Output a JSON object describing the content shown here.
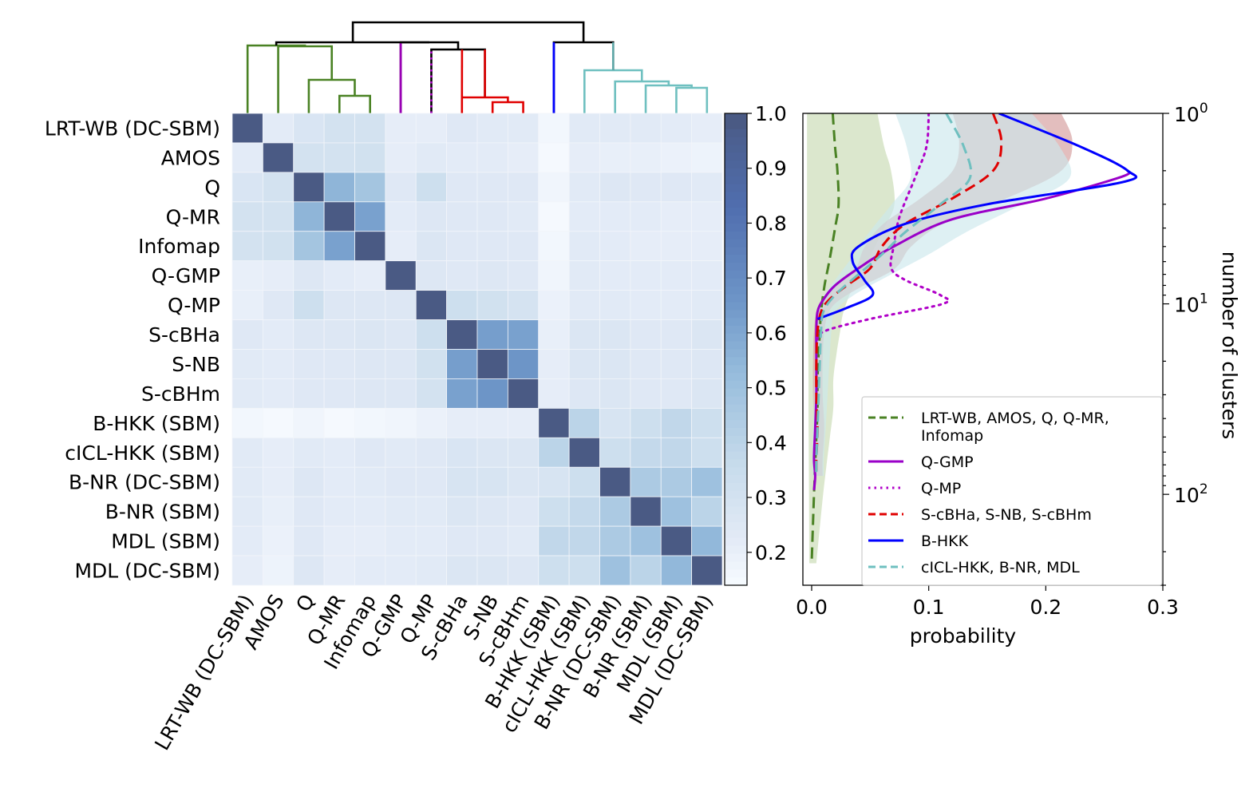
{
  "chart_data": [
    {
      "type": "heatmap",
      "title": "",
      "labels": [
        "LRT-WB (DC-SBM)",
        "AMOS",
        "Q",
        "Q-MR",
        "Infomap",
        "Q-GMP",
        "Q-MP",
        "S-cBHa",
        "S-NB",
        "S-cBHm",
        "B-HKK (SBM)",
        "cICL-HKK (SBM)",
        "B-NR (DC-SBM)",
        "B-NR (SBM)",
        "MDL (SBM)",
        "MDL (DC-SBM)"
      ],
      "values": [
        [
          1.0,
          0.22,
          0.27,
          0.3,
          0.3,
          0.21,
          0.21,
          0.24,
          0.23,
          0.23,
          0.16,
          0.23,
          0.23,
          0.23,
          0.22,
          0.21
        ],
        [
          0.22,
          1.0,
          0.3,
          0.3,
          0.31,
          0.21,
          0.23,
          0.22,
          0.22,
          0.21,
          0.15,
          0.21,
          0.2,
          0.2,
          0.19,
          0.18
        ],
        [
          0.27,
          0.3,
          1.0,
          0.55,
          0.48,
          0.24,
          0.33,
          0.24,
          0.24,
          0.24,
          0.17,
          0.23,
          0.25,
          0.24,
          0.24,
          0.23
        ],
        [
          0.3,
          0.3,
          0.55,
          1.0,
          0.62,
          0.22,
          0.25,
          0.24,
          0.24,
          0.23,
          0.15,
          0.22,
          0.22,
          0.22,
          0.21,
          0.21
        ],
        [
          0.3,
          0.31,
          0.48,
          0.62,
          1.0,
          0.21,
          0.26,
          0.24,
          0.24,
          0.24,
          0.16,
          0.23,
          0.22,
          0.21,
          0.21,
          0.21
        ],
        [
          0.2,
          0.21,
          0.25,
          0.22,
          0.21,
          1.0,
          0.25,
          0.24,
          0.25,
          0.24,
          0.17,
          0.23,
          0.22,
          0.22,
          0.22,
          0.22
        ],
        [
          0.2,
          0.24,
          0.33,
          0.25,
          0.25,
          0.25,
          1.0,
          0.33,
          0.31,
          0.29,
          0.19,
          0.23,
          0.23,
          0.22,
          0.22,
          0.23
        ],
        [
          0.24,
          0.22,
          0.25,
          0.25,
          0.26,
          0.25,
          0.33,
          1.0,
          0.63,
          0.62,
          0.2,
          0.26,
          0.26,
          0.24,
          0.24,
          0.26
        ],
        [
          0.23,
          0.22,
          0.24,
          0.24,
          0.25,
          0.25,
          0.31,
          0.63,
          1.0,
          0.66,
          0.21,
          0.26,
          0.26,
          0.24,
          0.24,
          0.25
        ],
        [
          0.23,
          0.22,
          0.24,
          0.24,
          0.25,
          0.25,
          0.3,
          0.62,
          0.66,
          1.0,
          0.21,
          0.25,
          0.26,
          0.24,
          0.24,
          0.26
        ],
        [
          0.16,
          0.15,
          0.17,
          0.15,
          0.16,
          0.17,
          0.19,
          0.21,
          0.21,
          0.21,
          1.0,
          0.4,
          0.28,
          0.33,
          0.38,
          0.33
        ],
        [
          0.23,
          0.21,
          0.23,
          0.22,
          0.24,
          0.23,
          0.24,
          0.27,
          0.26,
          0.26,
          0.4,
          1.0,
          0.33,
          0.37,
          0.38,
          0.33
        ],
        [
          0.23,
          0.21,
          0.25,
          0.22,
          0.23,
          0.24,
          0.24,
          0.28,
          0.28,
          0.26,
          0.28,
          0.33,
          1.0,
          0.45,
          0.45,
          0.5
        ],
        [
          0.23,
          0.2,
          0.24,
          0.22,
          0.22,
          0.23,
          0.23,
          0.26,
          0.25,
          0.24,
          0.33,
          0.37,
          0.45,
          1.0,
          0.5,
          0.4
        ],
        [
          0.22,
          0.19,
          0.24,
          0.21,
          0.21,
          0.22,
          0.22,
          0.24,
          0.24,
          0.23,
          0.38,
          0.38,
          0.45,
          0.5,
          1.0,
          0.54
        ],
        [
          0.21,
          0.18,
          0.25,
          0.21,
          0.22,
          0.22,
          0.23,
          0.26,
          0.26,
          0.25,
          0.33,
          0.33,
          0.5,
          0.4,
          0.54,
          1.0
        ]
      ],
      "colorbar": {
        "min": 0.14,
        "max": 1.0,
        "ticks": [
          0.2,
          0.3,
          0.4,
          0.5,
          0.6,
          0.7,
          0.8,
          0.9,
          1.0
        ],
        "tick_labels": [
          "0.2",
          "0.3",
          "0.4",
          "0.5",
          "0.6",
          "0.7",
          "0.8",
          "0.9",
          "1.0"
        ],
        "colormap": "Blues (dark navy at max)"
      },
      "dendrogram": {
        "clusters": [
          {
            "members": [
              "LRT-WB (DC-SBM)",
              "AMOS",
              "Q",
              "Q-MR",
              "Infomap"
            ],
            "color": "#4a8224"
          },
          {
            "members": [
              "Q-GMP"
            ],
            "color": "#9a00b5"
          },
          {
            "members": [
              "Q-MP"
            ],
            "color": "#b000c8",
            "style": "dotted"
          },
          {
            "members": [
              "S-cBHa",
              "S-NB",
              "S-cBHm"
            ],
            "color": "#e00000"
          },
          {
            "members": [
              "B-HKK (SBM)"
            ],
            "color": "#0000ff"
          },
          {
            "members": [
              "cICL-HKK (SBM)",
              "B-NR (DC-SBM)",
              "B-NR (SBM)",
              "MDL (SBM)",
              "MDL (DC-SBM)"
            ],
            "color": "#6fc0c0"
          }
        ],
        "link_color": "#000000"
      }
    },
    {
      "type": "line",
      "xlabel": "probability",
      "ylabel": "number of clusters",
      "xlim": [
        0.0,
        0.3
      ],
      "x_ticks": [
        "0.0",
        "0.1",
        "0.2",
        "0.3"
      ],
      "y_scale": "log",
      "ylim": [
        1,
        300
      ],
      "y_inverted": true,
      "y_ticks": [
        {
          "base": "10",
          "exp": "0"
        },
        {
          "base": "10",
          "exp": "1"
        },
        {
          "base": "10",
          "exp": "2"
        }
      ],
      "legend_position": "lower-right",
      "series": [
        {
          "name": "LRT-WB, AMOS, Q, Q-MR, Infomap",
          "legend_lines": [
            "LRT-WB, AMOS, Q, Q-MR,",
            "Infomap"
          ],
          "color": "#4a8224",
          "style": "dashed",
          "band": true,
          "band_color": "#c7dab2",
          "points": [
            [
              0.018,
              1
            ],
            [
              0.02,
              1.5
            ],
            [
              0.022,
              2
            ],
            [
              0.023,
              3
            ],
            [
              0.02,
              4
            ],
            [
              0.015,
              6
            ],
            [
              0.011,
              8
            ],
            [
              0.008,
              11
            ],
            [
              0.007,
              14
            ],
            [
              0.006,
              18
            ],
            [
              0.005,
              25
            ],
            [
              0.005,
              35
            ],
            [
              0.004,
              50
            ],
            [
              0.003,
              70
            ],
            [
              0.002,
              100
            ],
            [
              0.001,
              150
            ],
            [
              0.0,
              230
            ]
          ]
        },
        {
          "name": "Q-GMP",
          "legend_lines": [
            "Q-GMP"
          ],
          "color": "#9a00c8",
          "style": "solid",
          "band": false,
          "points": [
            [
              0.27,
              2
            ],
            [
              0.265,
              2.15
            ],
            [
              0.2,
              2.8
            ],
            [
              0.12,
              3.6
            ],
            [
              0.07,
              5
            ],
            [
              0.04,
              6.5
            ],
            [
              0.02,
              8
            ],
            [
              0.01,
              9.5
            ],
            [
              0.005,
              11
            ],
            [
              0.004,
              14
            ],
            [
              0.004,
              20
            ],
            [
              0.004,
              30
            ],
            [
              0.003,
              45
            ],
            [
              0.002,
              65
            ],
            [
              0.003,
              80
            ],
            [
              0.002,
              95
            ]
          ]
        },
        {
          "name": "Q-MP",
          "legend_lines": [
            "Q-MP"
          ],
          "color": "#b000c8",
          "style": "dotted",
          "band": false,
          "points": [
            [
              0.1,
              1
            ],
            [
              0.098,
              1.5
            ],
            [
              0.088,
              2.2
            ],
            [
              0.075,
              3.5
            ],
            [
              0.07,
              5
            ],
            [
              0.068,
              6.5
            ],
            [
              0.08,
              7.5
            ],
            [
              0.11,
              9
            ],
            [
              0.112,
              10
            ],
            [
              0.05,
              12
            ],
            [
              0.01,
              14
            ],
            [
              0.005,
              16
            ]
          ]
        },
        {
          "name": "S-cBHa, S-NB, S-cBHm",
          "legend_lines": [
            "S-cBHa, S-NB, S-cBHm"
          ],
          "color": "#e00000",
          "style": "dashed",
          "band": true,
          "band_color": "#d9a8a8",
          "points": [
            [
              0.155,
              1
            ],
            [
              0.162,
              1.4
            ],
            [
              0.155,
              2
            ],
            [
              0.12,
              2.8
            ],
            [
              0.08,
              3.8
            ],
            [
              0.06,
              5
            ],
            [
              0.05,
              6.5
            ],
            [
              0.03,
              8
            ],
            [
              0.015,
              9.5
            ],
            [
              0.008,
              11
            ],
            [
              0.005,
              14
            ],
            [
              0.004,
              20
            ],
            [
              0.004,
              30
            ],
            [
              0.005,
              45
            ],
            [
              0.004,
              65
            ],
            [
              0.004,
              80
            ]
          ]
        },
        {
          "name": "B-HKK",
          "legend_lines": [
            "B-HKK"
          ],
          "color": "#0000ff",
          "style": "solid",
          "band": false,
          "points": [
            [
              0.16,
              1
            ],
            [
              0.23,
              1.5
            ],
            [
              0.27,
              2
            ],
            [
              0.265,
              2.3
            ],
            [
              0.15,
              3
            ],
            [
              0.08,
              3.8
            ],
            [
              0.04,
              5
            ],
            [
              0.035,
              6
            ],
            [
              0.045,
              7.5
            ],
            [
              0.052,
              9
            ],
            [
              0.03,
              10.5
            ],
            [
              0.005,
              12
            ]
          ]
        },
        {
          "name": "cICL-HKK, B-NR, MDL",
          "legend_lines": [
            "cICL-HKK, B-NR, MDL"
          ],
          "color": "#6fc0c0",
          "style": "dashed",
          "band": true,
          "band_color": "#cde8ec",
          "points": [
            [
              0.115,
              1
            ],
            [
              0.13,
              1.5
            ],
            [
              0.135,
              2.2
            ],
            [
              0.11,
              3
            ],
            [
              0.08,
              4.2
            ],
            [
              0.06,
              5.5
            ],
            [
              0.04,
              7
            ],
            [
              0.02,
              9
            ],
            [
              0.01,
              11
            ],
            [
              0.008,
              14
            ],
            [
              0.007,
              20
            ],
            [
              0.006,
              30
            ],
            [
              0.005,
              45
            ],
            [
              0.004,
              65
            ],
            [
              0.004,
              80
            ]
          ]
        }
      ]
    }
  ]
}
